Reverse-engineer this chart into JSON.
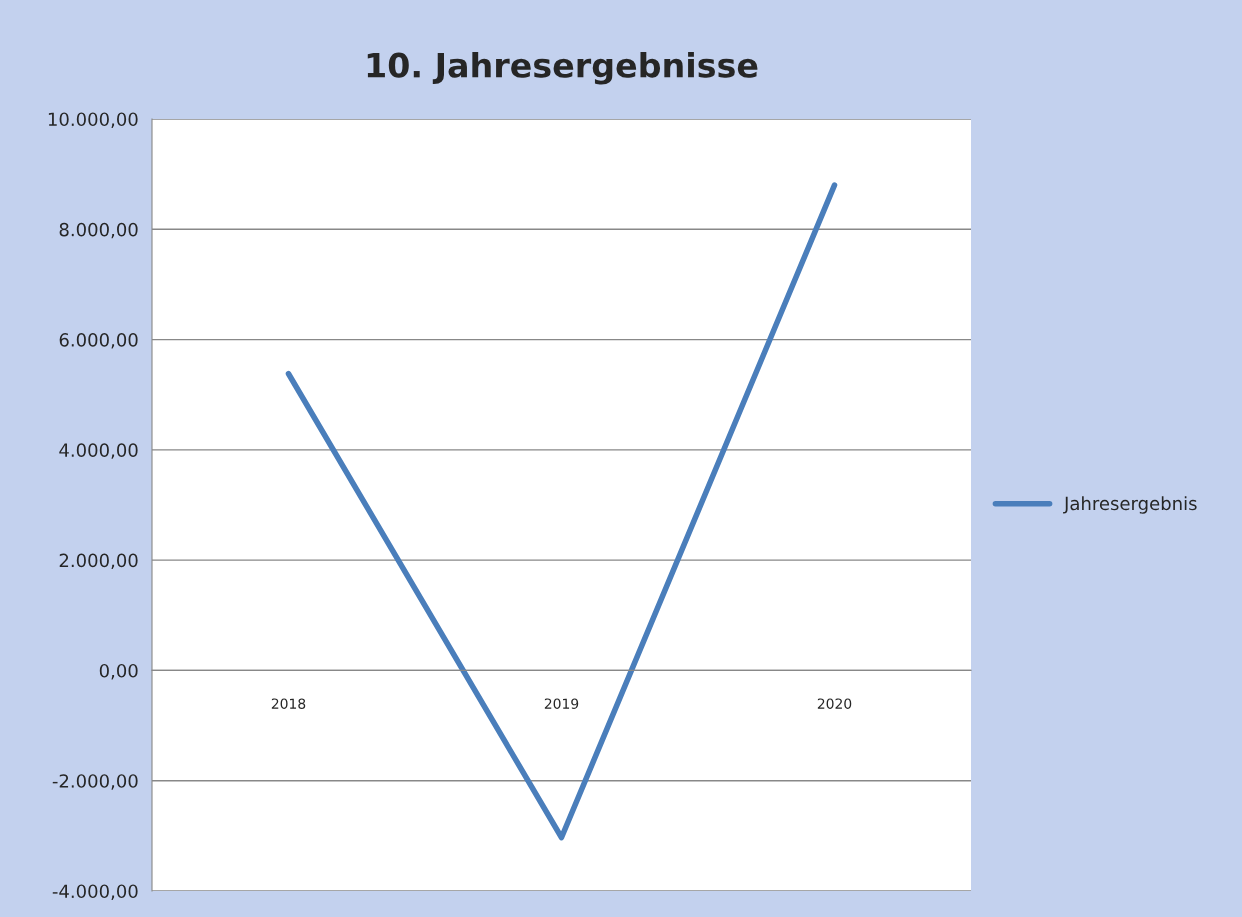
{
  "chart_data": {
    "type": "line",
    "title": "10. Jahresergebnisse",
    "categories": [
      "2018",
      "2019",
      "2020"
    ],
    "series": [
      {
        "name": "Jahresergebnis",
        "color": "#4a7ebb",
        "values": [
          5380,
          -3030,
          8800
        ]
      }
    ],
    "ylim": [
      -4000,
      10000
    ],
    "yticks": [
      {
        "value": -4000,
        "label": "-4.000,00"
      },
      {
        "value": -2000,
        "label": "-2.000,00"
      },
      {
        "value": 0,
        "label": "0,00"
      },
      {
        "value": 2000,
        "label": "2.000,00"
      },
      {
        "value": 4000,
        "label": "4.000,00"
      },
      {
        "value": 6000,
        "label": "6.000,00"
      },
      {
        "value": 8000,
        "label": "8.000,00"
      },
      {
        "value": 10000,
        "label": "10.000,00"
      }
    ],
    "grid": "y",
    "legend": "right",
    "marker": "none",
    "line_style": "solid"
  }
}
